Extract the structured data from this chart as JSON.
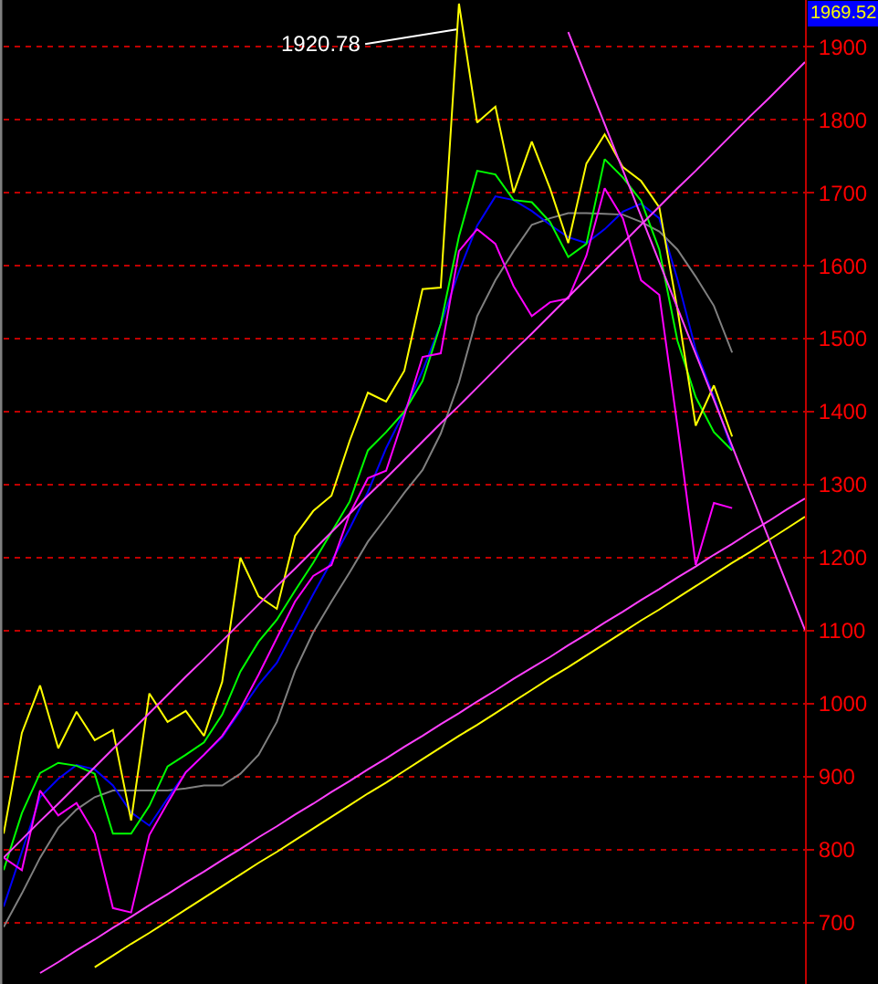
{
  "chart_data": {
    "type": "line",
    "categories": [
      null,
      null,
      null,
      null,
      null,
      null,
      null,
      null,
      null,
      null,
      null,
      null,
      null,
      null,
      null,
      null,
      null,
      null,
      null,
      null,
      null,
      null,
      null,
      null,
      null,
      null,
      null,
      null,
      null,
      null,
      null,
      null,
      null,
      null,
      null,
      null,
      null,
      null,
      null,
      null,
      null,
      null,
      null,
      null,
      null
    ],
    "ylim": [
      616,
      1964
    ],
    "yticks": [
      700,
      800,
      900,
      1000,
      1100,
      1200,
      1300,
      1400,
      1500,
      1600,
      1700,
      1800,
      1900
    ],
    "tick_labels": "y",
    "grid": "y",
    "marker": "none",
    "line_style": "solid",
    "annotations": [
      "1920.78",
      "1969.52"
    ],
    "series": [
      {
        "color": "#808080",
        "values": [
          694,
          740,
          789,
          830,
          855,
          872,
          881,
          881,
          881,
          881,
          884,
          888,
          888,
          904,
          930,
          975,
          1045,
          1098,
          1140,
          1180,
          1222,
          1255,
          1289,
          1320,
          1370,
          1440,
          1531,
          1580,
          1620,
          1656,
          1665,
          1672,
          1672,
          1671,
          1670,
          1660,
          1647,
          1622,
          1585,
          1545,
          1481,
          null,
          null,
          null,
          null
        ]
      },
      {
        "color": "#0000ff",
        "values": [
          722,
          797,
          872,
          897,
          916,
          910,
          888,
          851,
          833,
          870,
          906,
          930,
          954,
          990,
          1026,
          1056,
          1103,
          1150,
          1195,
          1240,
          1290,
          1350,
          1400,
          1456,
          1520,
          1592,
          1655,
          1695,
          1690,
          1675,
          1656,
          1639,
          1631,
          1650,
          1674,
          1685,
          1665,
          1581,
          1485,
          1420,
          1347,
          null,
          null,
          null,
          null
        ]
      },
      {
        "color": "#00ff00",
        "values": [
          772,
          850,
          905,
          919,
          915,
          904,
          822,
          822,
          860,
          914,
          930,
          947,
          985,
          1044,
          1085,
          1115,
          1155,
          1193,
          1235,
          1277,
          1347,
          1372,
          1400,
          1442,
          1520,
          1640,
          1730,
          1725,
          1690,
          1687,
          1660,
          1612,
          1630,
          1746,
          1721,
          1689,
          1622,
          1497,
          1420,
          1372,
          1347,
          null,
          null,
          null,
          null
        ]
      },
      {
        "color": "#ff00ff",
        "values": [
          789,
          772,
          881,
          847,
          864,
          822,
          720,
          714,
          820,
          864,
          906,
          930,
          956,
          993,
          1040,
          1090,
          1140,
          1175,
          1190,
          1260,
          1309,
          1319,
          1395,
          1475,
          1480,
          1620,
          1650,
          1630,
          1572,
          1531,
          1550,
          1555,
          1614,
          1706,
          1665,
          1580,
          1560,
          1380,
          1190,
          1275,
          1268,
          null,
          null,
          null,
          null
        ]
      },
      {
        "color": "#ffff00",
        "values": [
          822,
          960,
          1025,
          939,
          989,
          950,
          964,
          840,
          1014,
          975,
          990,
          956,
          1030,
          1200,
          1147,
          1130,
          1230,
          1264,
          1285,
          1360,
          1426,
          1414,
          1456,
          1568,
          1570,
          1959,
          1796,
          1818,
          1700,
          1770,
          1706,
          1631,
          1740,
          1780,
          1735,
          1716,
          1680,
          1540,
          1381,
          1436,
          1366,
          null,
          null,
          null,
          null
        ]
      },
      {
        "color": "#ff40ff",
        "values": [
          789,
          814,
          839,
          863,
          888,
          913,
          938,
          962,
          987,
          1012,
          1037,
          1061,
          1086,
          1111,
          1136,
          1161,
          1185,
          1210,
          1235,
          1260,
          1285,
          1309,
          1334,
          1359,
          1384,
          1408,
          1433,
          1458,
          1483,
          1507,
          1532,
          1557,
          1582,
          1607,
          1631,
          1656,
          1681,
          1706,
          1730,
          1755,
          1780,
          1805,
          1829,
          1854,
          1879
        ]
      },
      {
        "color": "#ff40ff",
        "values": [
          null,
          null,
          631,
          646,
          662,
          677,
          693,
          708,
          724,
          739,
          755,
          770,
          786,
          801,
          817,
          832,
          848,
          863,
          879,
          894,
          910,
          925,
          941,
          956,
          972,
          987,
          1003,
          1018,
          1034,
          1049,
          1064,
          1080,
          1095,
          1111,
          1126,
          1142,
          1157,
          1173,
          1188,
          1204,
          1219,
          1235,
          1250,
          1266,
          1281
        ]
      },
      {
        "color": "#ffff00",
        "values": [
          null,
          null,
          null,
          null,
          null,
          639,
          655,
          671,
          686,
          702,
          718,
          734,
          750,
          766,
          782,
          797,
          813,
          829,
          845,
          861,
          877,
          892,
          908,
          924,
          940,
          956,
          971,
          987,
          1003,
          1019,
          1035,
          1050,
          1066,
          1082,
          1098,
          1114,
          1129,
          1145,
          1161,
          1177,
          1193,
          1208,
          1224,
          1240,
          1256
        ]
      },
      {
        "color": "#ff40ff",
        "values": [
          null,
          null,
          null,
          null,
          null,
          null,
          null,
          null,
          null,
          null,
          null,
          null,
          null,
          null,
          null,
          null,
          null,
          null,
          null,
          null,
          null,
          null,
          null,
          null,
          null,
          null,
          null,
          null,
          null,
          null,
          null,
          1920,
          1857,
          1794,
          1731,
          1668,
          1605,
          1542,
          1479,
          1416,
          1353,
          1290,
          1227,
          1164,
          1101
        ]
      }
    ]
  }
}
